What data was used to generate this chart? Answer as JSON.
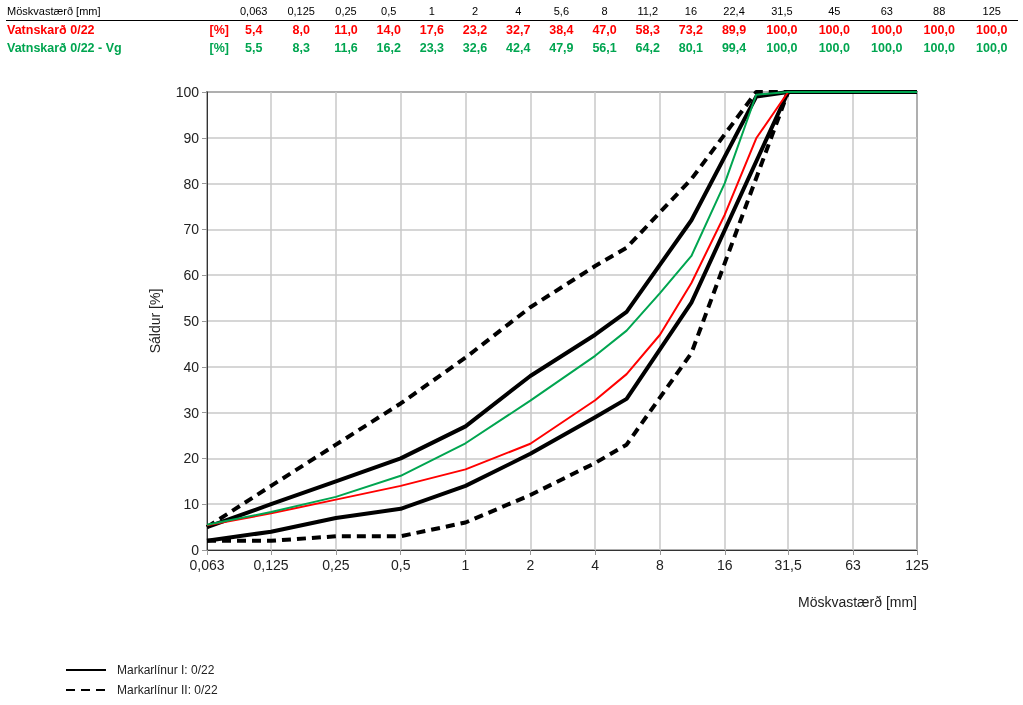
{
  "chart_data": [
    {
      "type": "other",
      "annotations": [
        "Möskvastærð [mm]",
        "[%]"
      ],
      "categories": [
        "0,063",
        "0,125",
        "0,25",
        "0,5",
        "1",
        "2",
        "4",
        "5,6",
        "8",
        "11,2",
        "16",
        "22,4",
        "31,5",
        "45",
        "63",
        "88",
        "125"
      ],
      "series": [
        {
          "name": "Vatnskarð 0/22",
          "color": "#ff0000",
          "values": [
            5.4,
            8.0,
            11.0,
            14.0,
            17.6,
            23.2,
            32.7,
            38.4,
            47.0,
            58.3,
            73.2,
            89.9,
            100,
            100,
            100,
            100,
            100
          ],
          "value_labels": [
            "5,4",
            "8,0",
            "11,0",
            "14,0",
            "17,6",
            "23,2",
            "32,7",
            "38,4",
            "47,0",
            "58,3",
            "73,2",
            "89,9",
            "100,0",
            "100,0",
            "100,0",
            "100,0",
            "100,0"
          ]
        },
        {
          "name": "Vatnskarð 0/22 - Vg",
          "color": "#00a550",
          "values": [
            5.5,
            8.3,
            11.6,
            16.2,
            23.3,
            32.6,
            42.4,
            47.9,
            56.1,
            64.2,
            80.1,
            99.4,
            100,
            100,
            100,
            100,
            100
          ],
          "value_labels": [
            "5,5",
            "8,3",
            "11,6",
            "16,2",
            "23,3",
            "32,6",
            "42,4",
            "47,9",
            "56,1",
            "64,2",
            "80,1",
            "99,4",
            "100,0",
            "100,0",
            "100,0",
            "100,0",
            "100,0"
          ]
        }
      ]
    },
    {
      "type": "line",
      "xlabel": "Möskvastærð [mm]",
      "ylabel": "Sáldur [%]",
      "log": "x",
      "xlim": [
        0.063,
        125
      ],
      "xticks": [
        {
          "value": 0.063,
          "label": "0,063"
        },
        {
          "value": 0.125,
          "label": "0,125"
        },
        {
          "value": 0.25,
          "label": "0,25"
        },
        {
          "value": 0.5,
          "label": "0,5"
        },
        1,
        2,
        4,
        8,
        16,
        {
          "value": 31.5,
          "label": "31,5"
        },
        63,
        125
      ],
      "ylim": [
        0,
        100
      ],
      "yticks": [
        0,
        10,
        20,
        30,
        40,
        50,
        60,
        70,
        80,
        90,
        100
      ],
      "grid": true,
      "legend": "bottom left",
      "marker": "none",
      "series": [
        {
          "color": "#000000",
          "line_style": "solid",
          "x": [
            0.063,
            0.125,
            0.25,
            0.5,
            1,
            2,
            4,
            5.6,
            11.2,
            22.4,
            31.5,
            125
          ],
          "values": [
            5,
            10,
            15,
            20,
            27,
            38,
            47,
            52,
            72,
            99,
            100,
            100
          ]
        },
        {
          "name": "Markarlínur I: 0/22",
          "color": "#000000",
          "line_style": "solid",
          "x": [
            0.063,
            0.125,
            0.25,
            0.5,
            1,
            2,
            4,
            5.6,
            11.2,
            31.5,
            125
          ],
          "values": [
            2,
            4,
            7,
            9,
            14,
            21,
            29,
            33,
            54,
            100,
            100
          ]
        },
        {
          "color": "#000000",
          "line_style": "dashed",
          "x": [
            0.063,
            0.125,
            0.25,
            0.5,
            1,
            2,
            4,
            5.6,
            11.2,
            22.4,
            31.5,
            125
          ],
          "values": [
            5,
            14,
            23,
            32,
            42,
            53,
            62,
            66,
            81,
            100,
            100,
            100
          ]
        },
        {
          "name": "Markarlínur II: 0/22",
          "color": "#000000",
          "line_style": "dashed",
          "x": [
            0.063,
            0.125,
            0.25,
            0.5,
            1,
            2,
            4,
            5.6,
            11.2,
            31.5,
            125
          ],
          "values": [
            2,
            2,
            3,
            3,
            6,
            12,
            19,
            23,
            43,
            100,
            100
          ]
        },
        {
          "color": "#ff0000",
          "line_style": "solid",
          "x": [
            0.063,
            0.125,
            0.25,
            0.5,
            1,
            2,
            4,
            5.6,
            8,
            11.2,
            16,
            22.4,
            31.5
          ],
          "values": [
            5.4,
            8.0,
            11.0,
            14.0,
            17.6,
            23.2,
            32.7,
            38.4,
            47.0,
            58.3,
            73.2,
            89.9,
            100
          ]
        },
        {
          "color": "#00a550",
          "line_style": "solid",
          "x": [
            0.063,
            0.125,
            0.25,
            0.5,
            1,
            2,
            4,
            5.6,
            8,
            11.2,
            16,
            22.4,
            31.5,
            45,
            63,
            88,
            125
          ],
          "values": [
            5.5,
            8.3,
            11.6,
            16.2,
            23.3,
            32.6,
            42.4,
            47.9,
            56.1,
            64.2,
            80.1,
            99.4,
            100,
            100,
            100,
            100,
            100
          ]
        }
      ]
    }
  ]
}
